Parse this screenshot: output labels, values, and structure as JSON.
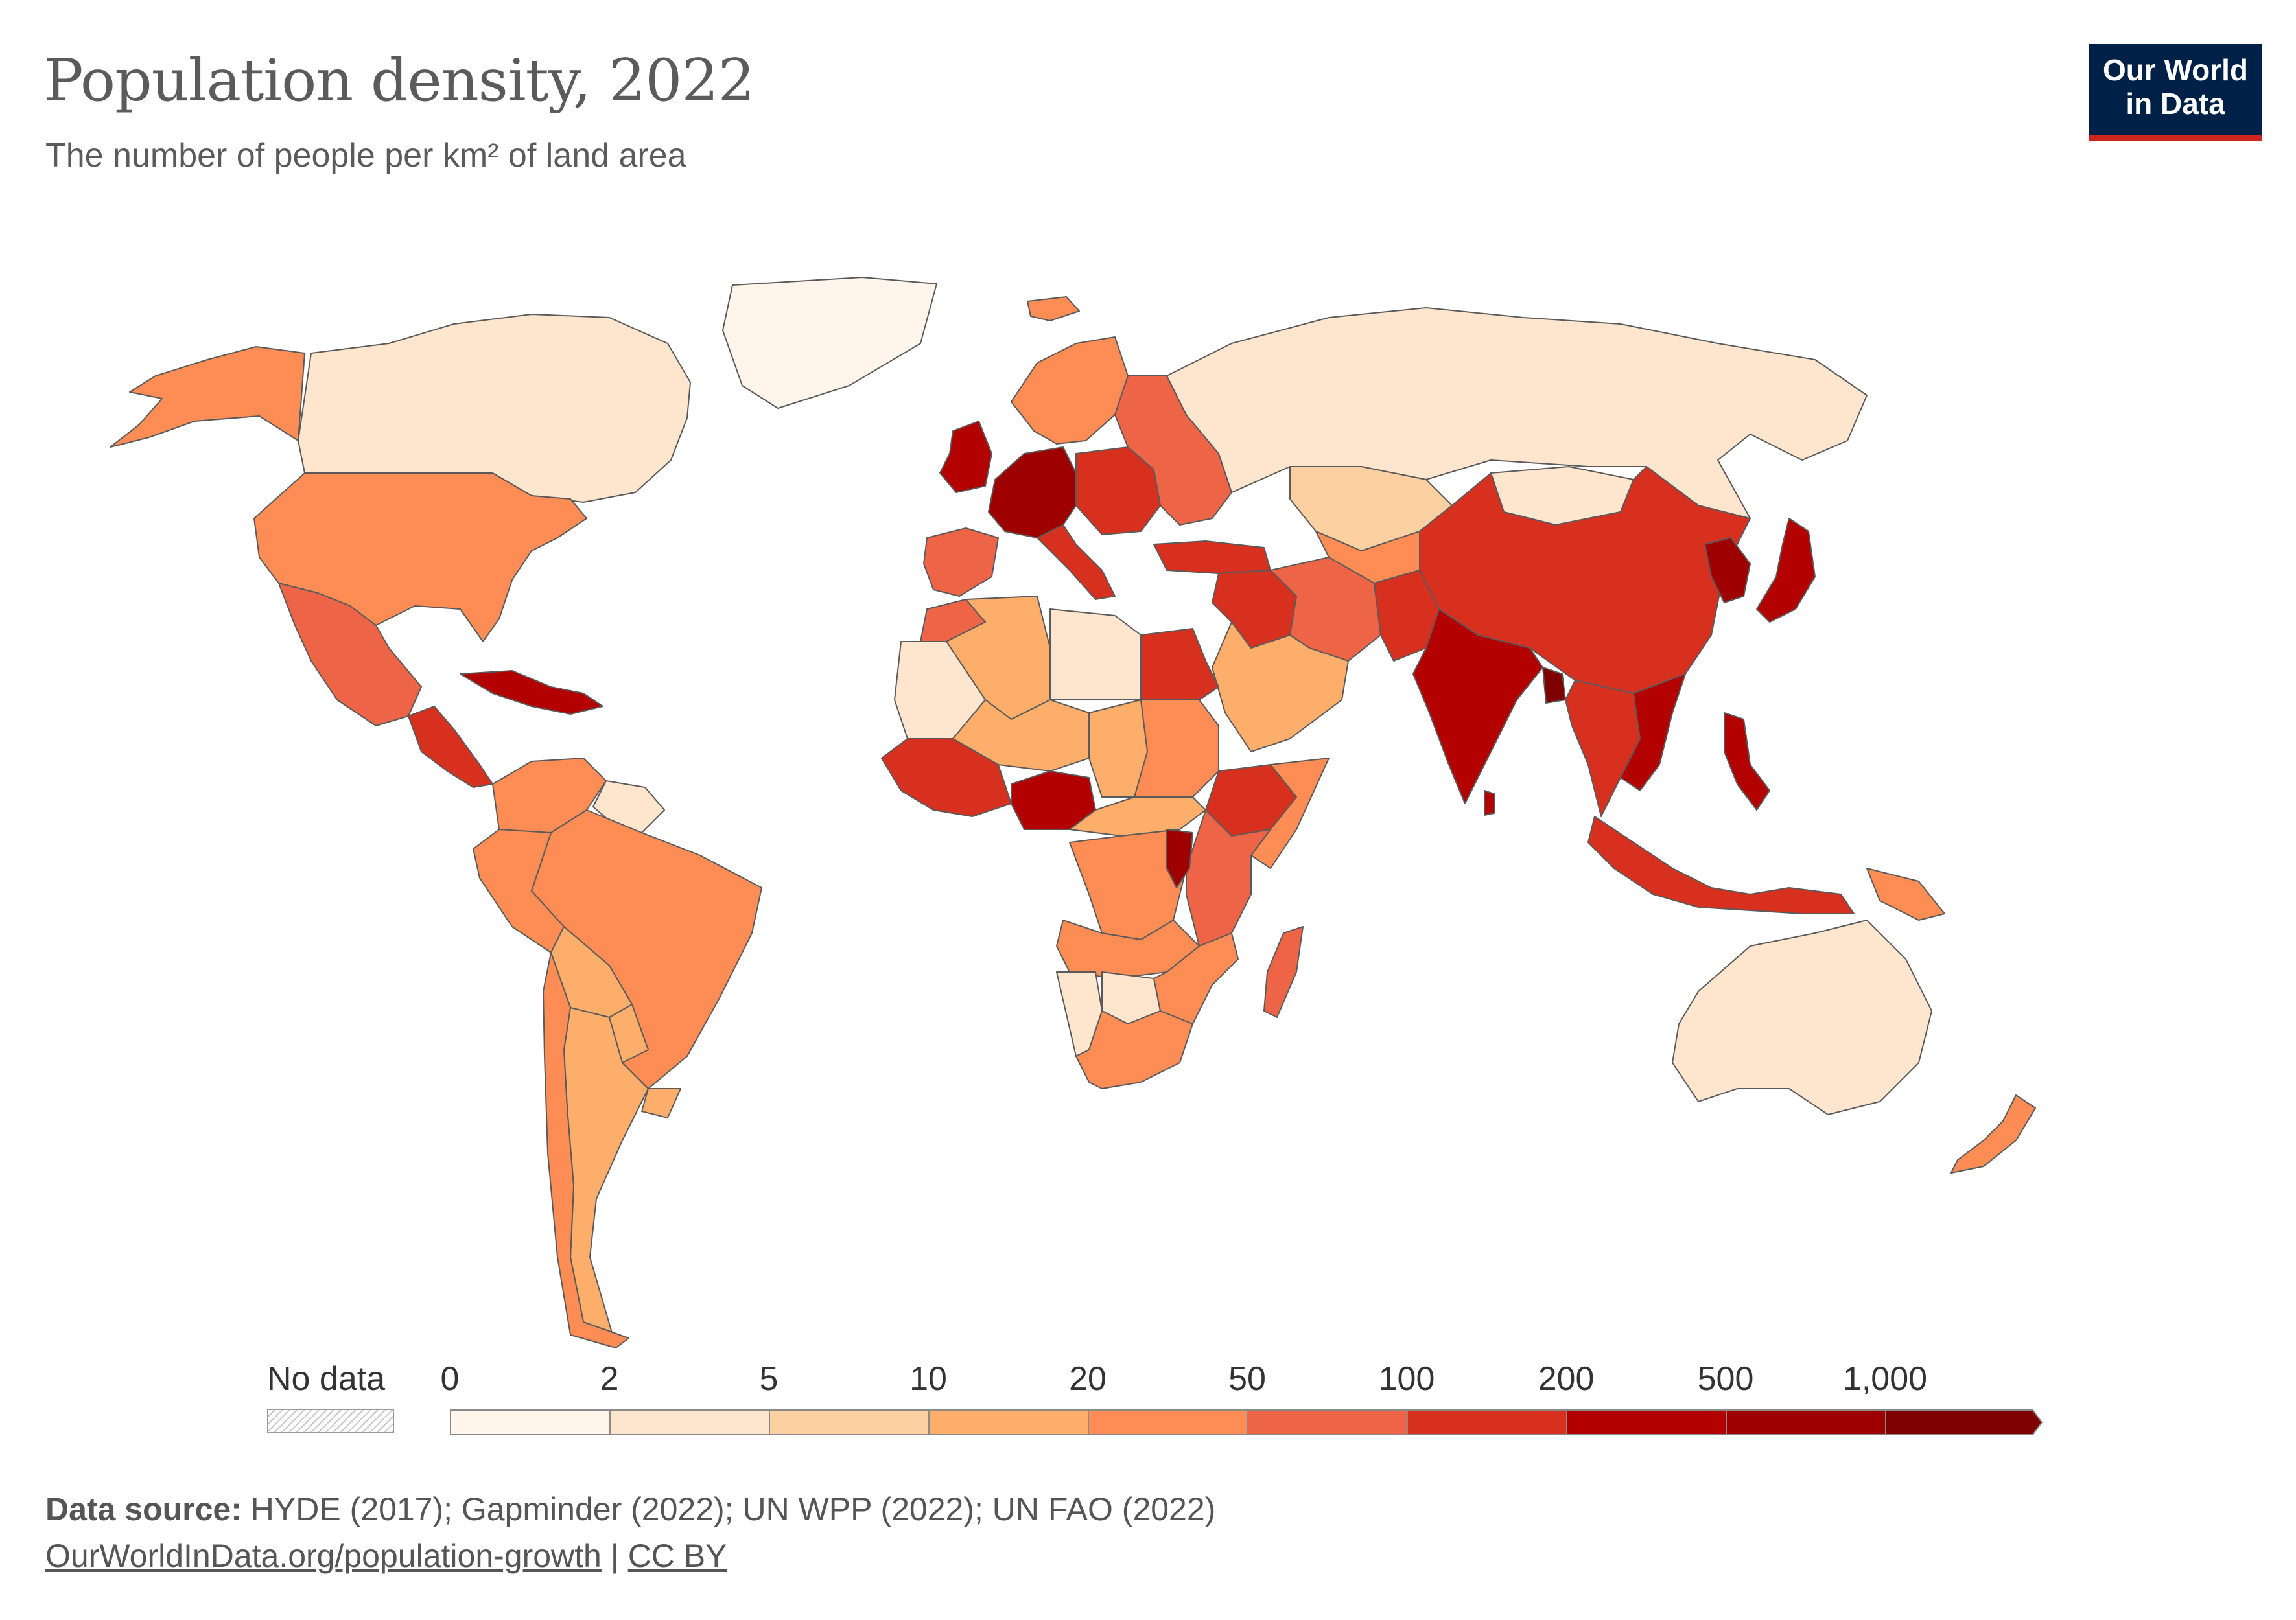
{
  "header": {
    "title": "Population density, 2022",
    "subtitle": "The number of people per km² of land area"
  },
  "logo": {
    "line1": "Our World",
    "line2": "in Data",
    "background": "#002147",
    "accent": "#ce261e"
  },
  "legend": {
    "no_data_label": "No data",
    "bins": [
      "0",
      "2",
      "5",
      "10",
      "20",
      "50",
      "100",
      "200",
      "500",
      "1,000"
    ],
    "colors": [
      "#fff5eb",
      "#fee6ce",
      "#fdd0a2",
      "#fdae6b",
      "#fd8d55",
      "#ee6446",
      "#d7301f",
      "#b30000",
      "#9e0000",
      "#7f0000"
    ]
  },
  "footer": {
    "source_label": "Data source:",
    "source_text": "HYDE (2017); Gapminder (2022); UN WPP (2022); UN FAO (2022)",
    "url": "OurWorldInData.org/population-growth",
    "separator": "|",
    "license": "CC BY"
  },
  "map": {
    "countries": [
      {
        "name": "Greenland",
        "bin": 0
      },
      {
        "name": "Canada",
        "bin": 1
      },
      {
        "name": "Alaska",
        "bin": 4
      },
      {
        "name": "United States",
        "bin": 4
      },
      {
        "name": "Mexico",
        "bin": 5
      },
      {
        "name": "Central America",
        "bin": 6
      },
      {
        "name": "Caribbean",
        "bin": 7
      },
      {
        "name": "Colombia and Venezuela",
        "bin": 4
      },
      {
        "name": "Guianas",
        "bin": 1
      },
      {
        "name": "Brazil",
        "bin": 4
      },
      {
        "name": "Peru",
        "bin": 4
      },
      {
        "name": "Bolivia",
        "bin": 3
      },
      {
        "name": "Paraguay",
        "bin": 3
      },
      {
        "name": "Argentina",
        "bin": 3
      },
      {
        "name": "Chile",
        "bin": 4
      },
      {
        "name": "Uruguay",
        "bin": 3
      },
      {
        "name": "Iceland",
        "bin": 4
      },
      {
        "name": "Scandinavia",
        "bin": 4
      },
      {
        "name": "United Kingdom",
        "bin": 7
      },
      {
        "name": "Western Europe",
        "bin": 8
      },
      {
        "name": "Central Europe",
        "bin": 6
      },
      {
        "name": "Eastern Europe",
        "bin": 5
      },
      {
        "name": "Iberia",
        "bin": 5
      },
      {
        "name": "Italy",
        "bin": 6
      },
      {
        "name": "Russia",
        "bin": 1
      },
      {
        "name": "Kazakhstan",
        "bin": 2
      },
      {
        "name": "Mongolia",
        "bin": 1
      },
      {
        "name": "China",
        "bin": 6
      },
      {
        "name": "Korea",
        "bin": 8
      },
      {
        "name": "Japan",
        "bin": 7
      },
      {
        "name": "Turkey",
        "bin": 6
      },
      {
        "name": "Middle East",
        "bin": 6
      },
      {
        "name": "Iran",
        "bin": 5
      },
      {
        "name": "Central Asia",
        "bin": 4
      },
      {
        "name": "Arabian Peninsula",
        "bin": 3
      },
      {
        "name": "Pakistan and Afghanistan",
        "bin": 6
      },
      {
        "name": "India",
        "bin": 7
      },
      {
        "name": "Bangladesh",
        "bin": 9
      },
      {
        "name": "Southeast Asia mainland",
        "bin": 6
      },
      {
        "name": "Vietnam",
        "bin": 7
      },
      {
        "name": "Philippines",
        "bin": 7
      },
      {
        "name": "Indonesia",
        "bin": 6
      },
      {
        "name": "Papua New Guinea",
        "bin": 4
      },
      {
        "name": "Australia",
        "bin": 1
      },
      {
        "name": "New Zealand",
        "bin": 4
      },
      {
        "name": "Morocco",
        "bin": 5
      },
      {
        "name": "Algeria",
        "bin": 3
      },
      {
        "name": "Libya",
        "bin": 1
      },
      {
        "name": "Egypt",
        "bin": 6
      },
      {
        "name": "Mauritania",
        "bin": 1
      },
      {
        "name": "Mali and Niger",
        "bin": 3
      },
      {
        "name": "Chad",
        "bin": 3
      },
      {
        "name": "Sudan",
        "bin": 4
      },
      {
        "name": "West Africa coast",
        "bin": 6
      },
      {
        "name": "Nigeria",
        "bin": 7
      },
      {
        "name": "Ethiopia",
        "bin": 6
      },
      {
        "name": "Somalia",
        "bin": 4
      },
      {
        "name": "Central Africa",
        "bin": 3
      },
      {
        "name": "DR Congo",
        "bin": 4
      },
      {
        "name": "East Africa",
        "bin": 5
      },
      {
        "name": "Uganda and Rwanda",
        "bin": 8
      },
      {
        "name": "Angola and Zambia",
        "bin": 4
      },
      {
        "name": "Namibia",
        "bin": 1
      },
      {
        "name": "Botswana",
        "bin": 1
      },
      {
        "name": "South Africa",
        "bin": 4
      },
      {
        "name": "Mozambique",
        "bin": 4
      },
      {
        "name": "Madagascar",
        "bin": 5
      },
      {
        "name": "Sri Lanka",
        "bin": 7
      }
    ]
  }
}
